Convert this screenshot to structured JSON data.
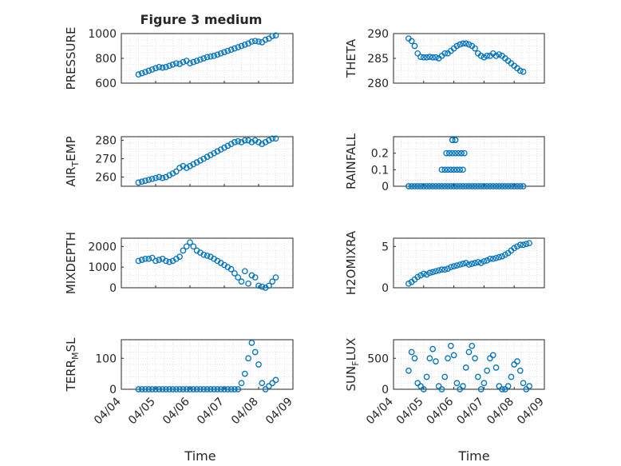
{
  "figure": {
    "title": "Figure 3 medium",
    "x_label": "Time",
    "x_ticks": [
      "04/04",
      "04/05",
      "04/06",
      "04/07",
      "04/08",
      "04/09"
    ]
  },
  "colors": {
    "marker": "#0072BD",
    "grid": "#dcdcdc",
    "axis": "#262626"
  },
  "chart_data": [
    {
      "type": "scatter",
      "ylabel": "PRESSURE",
      "ylim": [
        600,
        1000
      ],
      "yticks": [
        600,
        800,
        1000
      ],
      "x_start": "04/04",
      "x_end": "04/09",
      "series": [
        {
          "x_days": [
            0.5,
            0.6,
            0.7,
            0.8,
            0.9,
            1.0,
            1.1,
            1.2,
            1.3,
            1.4,
            1.5,
            1.6,
            1.7,
            1.8,
            1.9,
            2.0,
            2.1,
            2.2,
            2.3,
            2.4,
            2.5,
            2.6,
            2.7,
            2.8,
            2.9,
            3.0,
            3.1,
            3.2,
            3.3,
            3.4,
            3.5,
            3.6,
            3.7,
            3.8,
            3.9,
            4.0,
            4.1,
            4.2,
            4.3,
            4.4,
            4.5
          ],
          "y": [
            670,
            680,
            690,
            700,
            710,
            720,
            730,
            725,
            730,
            740,
            750,
            760,
            755,
            770,
            780,
            760,
            770,
            780,
            790,
            800,
            810,
            815,
            820,
            830,
            840,
            850,
            860,
            870,
            880,
            890,
            900,
            910,
            920,
            935,
            940,
            935,
            930,
            950,
            960,
            980,
            985
          ]
        }
      ]
    },
    {
      "type": "scatter",
      "ylabel": "THETA",
      "ylim": [
        280,
        290
      ],
      "yticks": [
        280,
        285,
        290
      ],
      "series": [
        {
          "x_days": [
            0.5,
            0.6,
            0.7,
            0.8,
            0.9,
            1.0,
            1.1,
            1.2,
            1.3,
            1.4,
            1.5,
            1.6,
            1.7,
            1.8,
            1.9,
            2.0,
            2.1,
            2.2,
            2.3,
            2.4,
            2.5,
            2.6,
            2.7,
            2.8,
            2.9,
            3.0,
            3.1,
            3.2,
            3.3,
            3.4,
            3.5,
            3.6,
            3.7,
            3.8,
            3.9,
            4.0,
            4.1,
            4.2,
            4.3
          ],
          "y": [
            289,
            288.5,
            287.5,
            286,
            285.3,
            285.2,
            285.2,
            285.3,
            285.2,
            285.2,
            285,
            285.5,
            286,
            286,
            286.5,
            287,
            287.5,
            287.8,
            288,
            288,
            287.8,
            287.5,
            287,
            286,
            285.5,
            285.2,
            285.5,
            285.5,
            286,
            285.5,
            285.8,
            285.5,
            285,
            284.5,
            284,
            283.5,
            283,
            282.5,
            282.3
          ]
        }
      ]
    },
    {
      "type": "scatter",
      "ylabel": "AIR_TEMP",
      "ylim": [
        255,
        282
      ],
      "yticks": [
        260,
        270,
        280
      ],
      "series": [
        {
          "x_days": [
            0.5,
            0.6,
            0.7,
            0.8,
            0.9,
            1.0,
            1.1,
            1.2,
            1.3,
            1.4,
            1.5,
            1.6,
            1.7,
            1.8,
            1.9,
            2.0,
            2.1,
            2.2,
            2.3,
            2.4,
            2.5,
            2.6,
            2.7,
            2.8,
            2.9,
            3.0,
            3.1,
            3.2,
            3.3,
            3.4,
            3.5,
            3.6,
            3.7,
            3.8,
            3.9,
            4.0,
            4.1,
            4.2,
            4.3,
            4.4,
            4.5
          ],
          "y": [
            257,
            257.5,
            258,
            258.5,
            259,
            259.5,
            260,
            259.5,
            260,
            261,
            262,
            263,
            265,
            266,
            265,
            266,
            267,
            268,
            269,
            270,
            271,
            272,
            273,
            274,
            275,
            276,
            277,
            278,
            279,
            279.5,
            279,
            280,
            280,
            279,
            280,
            279,
            278,
            279,
            280,
            281,
            281
          ]
        }
      ]
    },
    {
      "type": "scatter",
      "ylabel": "RAINFALL",
      "ylim": [
        0,
        0.3
      ],
      "yticks": [
        0,
        0.1,
        0.2
      ],
      "series": [
        {
          "x_days": [
            0.5,
            0.6,
            0.7,
            0.8,
            0.9,
            1.0,
            1.1,
            1.2,
            1.3,
            1.4,
            1.5,
            1.6,
            1.7,
            1.8,
            1.9,
            2.0,
            2.1,
            2.2,
            2.3,
            2.4,
            2.5,
            2.6,
            2.7,
            2.8,
            2.9,
            3.0,
            3.1,
            3.2,
            3.3,
            3.4,
            3.5,
            3.6,
            3.7,
            3.8,
            3.9,
            4.0,
            4.1,
            4.2,
            4.3,
            1.6,
            1.8,
            1.9,
            2.1,
            2.2,
            1.7,
            2.0,
            2.3,
            1.75,
            1.85,
            1.95,
            2.05,
            2.15,
            2.25,
            1.85,
            1.95,
            2.05,
            2.25,
            2.35,
            1.95,
            2.05
          ],
          "y": [
            0,
            0,
            0,
            0,
            0,
            0,
            0,
            0,
            0,
            0,
            0,
            0,
            0,
            0,
            0,
            0,
            0,
            0,
            0,
            0,
            0,
            0,
            0,
            0,
            0,
            0,
            0,
            0,
            0,
            0,
            0,
            0,
            0,
            0,
            0,
            0,
            0,
            0,
            0,
            0.1,
            0.1,
            0.1,
            0.1,
            0.1,
            0.1,
            0.1,
            0.1,
            0.2,
            0.2,
            0.2,
            0.2,
            0.2,
            0.2,
            0.2,
            0.28,
            0.28,
            0.2,
            0.2,
            0.28,
            0.28
          ]
        }
      ]
    },
    {
      "type": "scatter",
      "ylabel": "MIXDEPTH",
      "ylim": [
        0,
        2400
      ],
      "yticks": [
        0,
        1000,
        2000
      ],
      "series": [
        {
          "x_days": [
            0.5,
            0.6,
            0.7,
            0.8,
            0.9,
            1.0,
            1.1,
            1.2,
            1.3,
            1.4,
            1.5,
            1.6,
            1.7,
            1.8,
            1.9,
            2.0,
            2.1,
            2.2,
            2.3,
            2.4,
            2.5,
            2.6,
            2.7,
            2.8,
            2.9,
            3.0,
            3.1,
            3.2,
            3.3,
            3.4,
            3.5,
            3.6,
            3.7,
            3.8,
            3.9,
            4.0,
            4.1,
            4.2,
            4.3,
            4.4,
            4.5
          ],
          "y": [
            1300,
            1350,
            1400,
            1400,
            1450,
            1300,
            1350,
            1400,
            1300,
            1250,
            1300,
            1400,
            1500,
            1800,
            2000,
            2200,
            2000,
            1800,
            1700,
            1600,
            1550,
            1500,
            1400,
            1300,
            1200,
            1100,
            1000,
            900,
            700,
            500,
            300,
            800,
            200,
            600,
            500,
            100,
            50,
            0,
            100,
            300,
            500
          ]
        }
      ]
    },
    {
      "type": "scatter",
      "ylabel": "H2OMIXRA",
      "ylim": [
        0,
        6
      ],
      "yticks": [
        0,
        5
      ],
      "series": [
        {
          "x_days": [
            0.5,
            0.6,
            0.7,
            0.8,
            0.9,
            1.0,
            1.1,
            1.2,
            1.3,
            1.4,
            1.5,
            1.6,
            1.7,
            1.8,
            1.9,
            2.0,
            2.1,
            2.2,
            2.3,
            2.4,
            2.5,
            2.6,
            2.7,
            2.8,
            2.9,
            3.0,
            3.1,
            3.2,
            3.3,
            3.4,
            3.5,
            3.6,
            3.7,
            3.8,
            3.9,
            4.0,
            4.1,
            4.2,
            4.3,
            4.4,
            4.5
          ],
          "y": [
            0.5,
            0.7,
            1.0,
            1.3,
            1.5,
            1.7,
            1.6,
            1.8,
            1.9,
            2.0,
            2.1,
            2.2,
            2.2,
            2.3,
            2.5,
            2.6,
            2.7,
            2.8,
            2.9,
            3.0,
            2.8,
            2.9,
            3.0,
            3.1,
            3.0,
            3.2,
            3.3,
            3.5,
            3.5,
            3.6,
            3.7,
            3.8,
            4.0,
            4.2,
            4.5,
            4.8,
            5.0,
            5.2,
            5.2,
            5.3,
            5.4
          ]
        }
      ]
    },
    {
      "type": "scatter",
      "ylabel": "TERR_MSL",
      "ylim": [
        0,
        160
      ],
      "yticks": [
        0,
        100
      ],
      "series": [
        {
          "x_days": [
            0.5,
            0.6,
            0.7,
            0.8,
            0.9,
            1.0,
            1.1,
            1.2,
            1.3,
            1.4,
            1.5,
            1.6,
            1.7,
            1.8,
            1.9,
            2.0,
            2.1,
            2.2,
            2.3,
            2.4,
            2.5,
            2.6,
            2.7,
            2.8,
            2.9,
            3.0,
            3.1,
            3.2,
            3.3,
            3.4,
            3.5,
            3.6,
            3.7,
            3.8,
            3.9,
            4.0,
            4.1,
            4.2,
            4.3,
            4.4,
            4.5
          ],
          "y": [
            0,
            0,
            0,
            0,
            0,
            0,
            0,
            0,
            0,
            0,
            0,
            0,
            0,
            0,
            0,
            0,
            0,
            0,
            0,
            0,
            0,
            0,
            0,
            0,
            0,
            0,
            0,
            0,
            0,
            0,
            20,
            50,
            100,
            150,
            120,
            80,
            20,
            0,
            10,
            20,
            30
          ]
        }
      ]
    },
    {
      "type": "scatter",
      "ylabel": "SUN_FLUX",
      "ylim": [
        0,
        800
      ],
      "yticks": [
        0,
        500
      ],
      "series": [
        {
          "x_days": [
            0.5,
            0.6,
            0.7,
            0.8,
            0.9,
            1.0,
            1.1,
            1.2,
            1.3,
            1.4,
            1.5,
            1.6,
            1.7,
            1.8,
            1.9,
            2.0,
            2.1,
            2.2,
            2.3,
            2.4,
            2.5,
            2.6,
            2.7,
            2.8,
            2.9,
            3.0,
            3.1,
            3.2,
            3.3,
            3.4,
            3.5,
            3.6,
            3.7,
            3.8,
            3.9,
            4.0,
            4.1,
            4.2,
            4.3,
            4.4,
            4.5
          ],
          "y": [
            300,
            600,
            500,
            100,
            50,
            0,
            200,
            500,
            650,
            450,
            50,
            0,
            200,
            500,
            700,
            550,
            100,
            0,
            50,
            350,
            600,
            700,
            500,
            200,
            0,
            100,
            300,
            500,
            550,
            350,
            50,
            0,
            0,
            50,
            200,
            400,
            450,
            300,
            100,
            0,
            50
          ]
        }
      ]
    }
  ]
}
